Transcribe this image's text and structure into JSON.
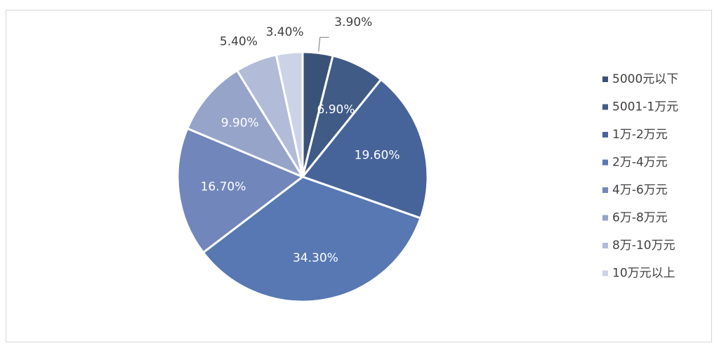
{
  "chart_data": {
    "type": "pie",
    "title": "",
    "legend_position": "right",
    "categories": [
      "5000元以下",
      "5001-1万元",
      "1万-2万元",
      "2万-4万元",
      "4万-6万元",
      "6万-8万元",
      "8万-10万元",
      "10万元以上"
    ],
    "values": [
      3.9,
      6.9,
      19.6,
      34.3,
      16.7,
      9.9,
      5.4,
      3.4
    ],
    "labels": [
      "3.90%",
      "6.90%",
      "19.60%",
      "34.30%",
      "16.70%",
      "9.90%",
      "5.40%",
      "3.40%"
    ],
    "colors": [
      "#3b5278",
      "#405b86",
      "#47649a",
      "#5778b2",
      "#7186bb",
      "#96a4c9",
      "#b2bcd8",
      "#cdd3e6"
    ],
    "label_colors": [
      "#404040",
      "#ffffff",
      "#ffffff",
      "#ffffff",
      "#ffffff",
      "#ffffff",
      "#404040",
      "#404040"
    ]
  }
}
